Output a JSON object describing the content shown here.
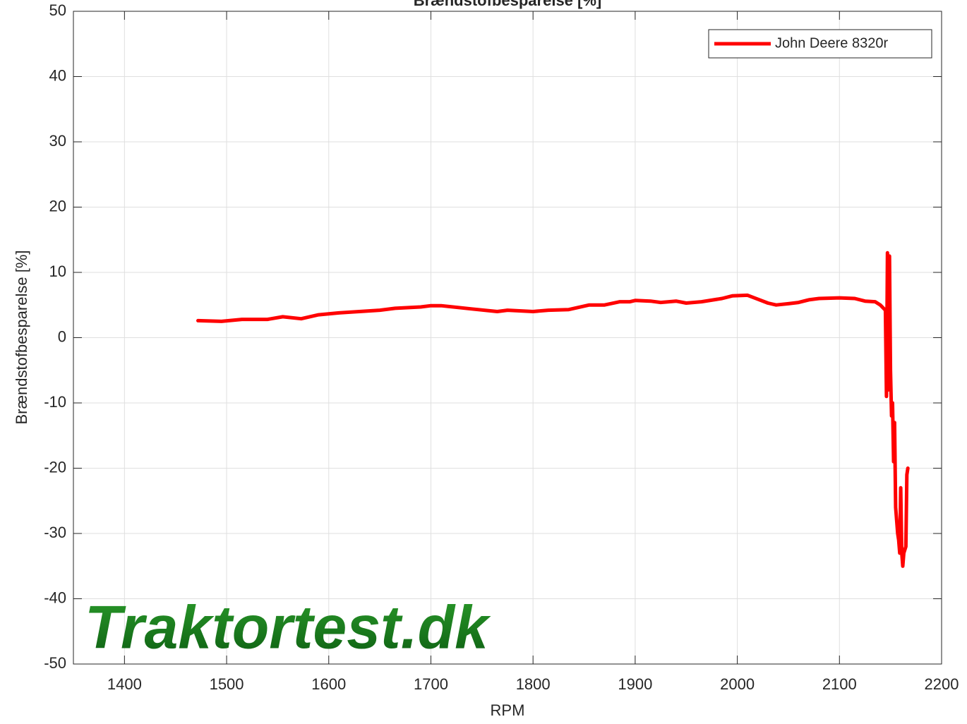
{
  "chart_data": {
    "type": "line",
    "title": "Brændstofbesparelse [%]",
    "xlabel": "RPM",
    "ylabel": "Brændstofbesparelse [%]",
    "watermark": "Traktortest.dk",
    "x": [
      1472,
      1495,
      1515,
      1540,
      1555,
      1573,
      1590,
      1610,
      1630,
      1650,
      1665,
      1690,
      1700,
      1710,
      1740,
      1765,
      1775,
      1800,
      1815,
      1835,
      1855,
      1870,
      1885,
      1895,
      1900,
      1915,
      1925,
      1940,
      1950,
      1965,
      1985,
      1995,
      2010,
      2020,
      2030,
      2038,
      2050,
      2060,
      2070,
      2080,
      2100,
      2115,
      2125,
      2135,
      2140,
      2145,
      2146,
      2147,
      2148,
      2149,
      2150,
      2151,
      2152,
      2153,
      2154,
      2155,
      2157,
      2158,
      2159,
      2160,
      2161,
      2162,
      2163,
      2165,
      2166,
      2167
    ],
    "series": [
      {
        "name": "John Deere 8320r",
        "color": "#ff0000",
        "values": [
          2.6,
          2.5,
          2.8,
          2.8,
          3.2,
          2.9,
          3.5,
          3.8,
          4.0,
          4.2,
          4.5,
          4.7,
          4.9,
          4.9,
          4.4,
          4.0,
          4.2,
          4.0,
          4.2,
          4.3,
          5.0,
          5.0,
          5.5,
          5.5,
          5.7,
          5.6,
          5.4,
          5.6,
          5.3,
          5.5,
          6.0,
          6.4,
          6.5,
          5.9,
          5.3,
          5.0,
          5.2,
          5.4,
          5.8,
          6.0,
          6.1,
          6.0,
          5.6,
          5.5,
          5.0,
          4.2,
          -9,
          13,
          -8,
          12.5,
          -5,
          -12,
          -10,
          -19,
          -13,
          -26,
          -30,
          -31,
          -33,
          -23,
          -33,
          -35,
          -33,
          -32,
          -21,
          -20
        ]
      }
    ],
    "xlim": [
      1350,
      2200
    ],
    "xticks": [
      1400,
      1500,
      1600,
      1700,
      1800,
      1900,
      2000,
      2100,
      2200
    ],
    "ylim": [
      -50,
      50
    ],
    "yticks": [
      -50,
      -40,
      -30,
      -20,
      -10,
      0,
      10,
      20,
      30,
      40,
      50
    ],
    "grid": true,
    "legend": "northeast"
  }
}
